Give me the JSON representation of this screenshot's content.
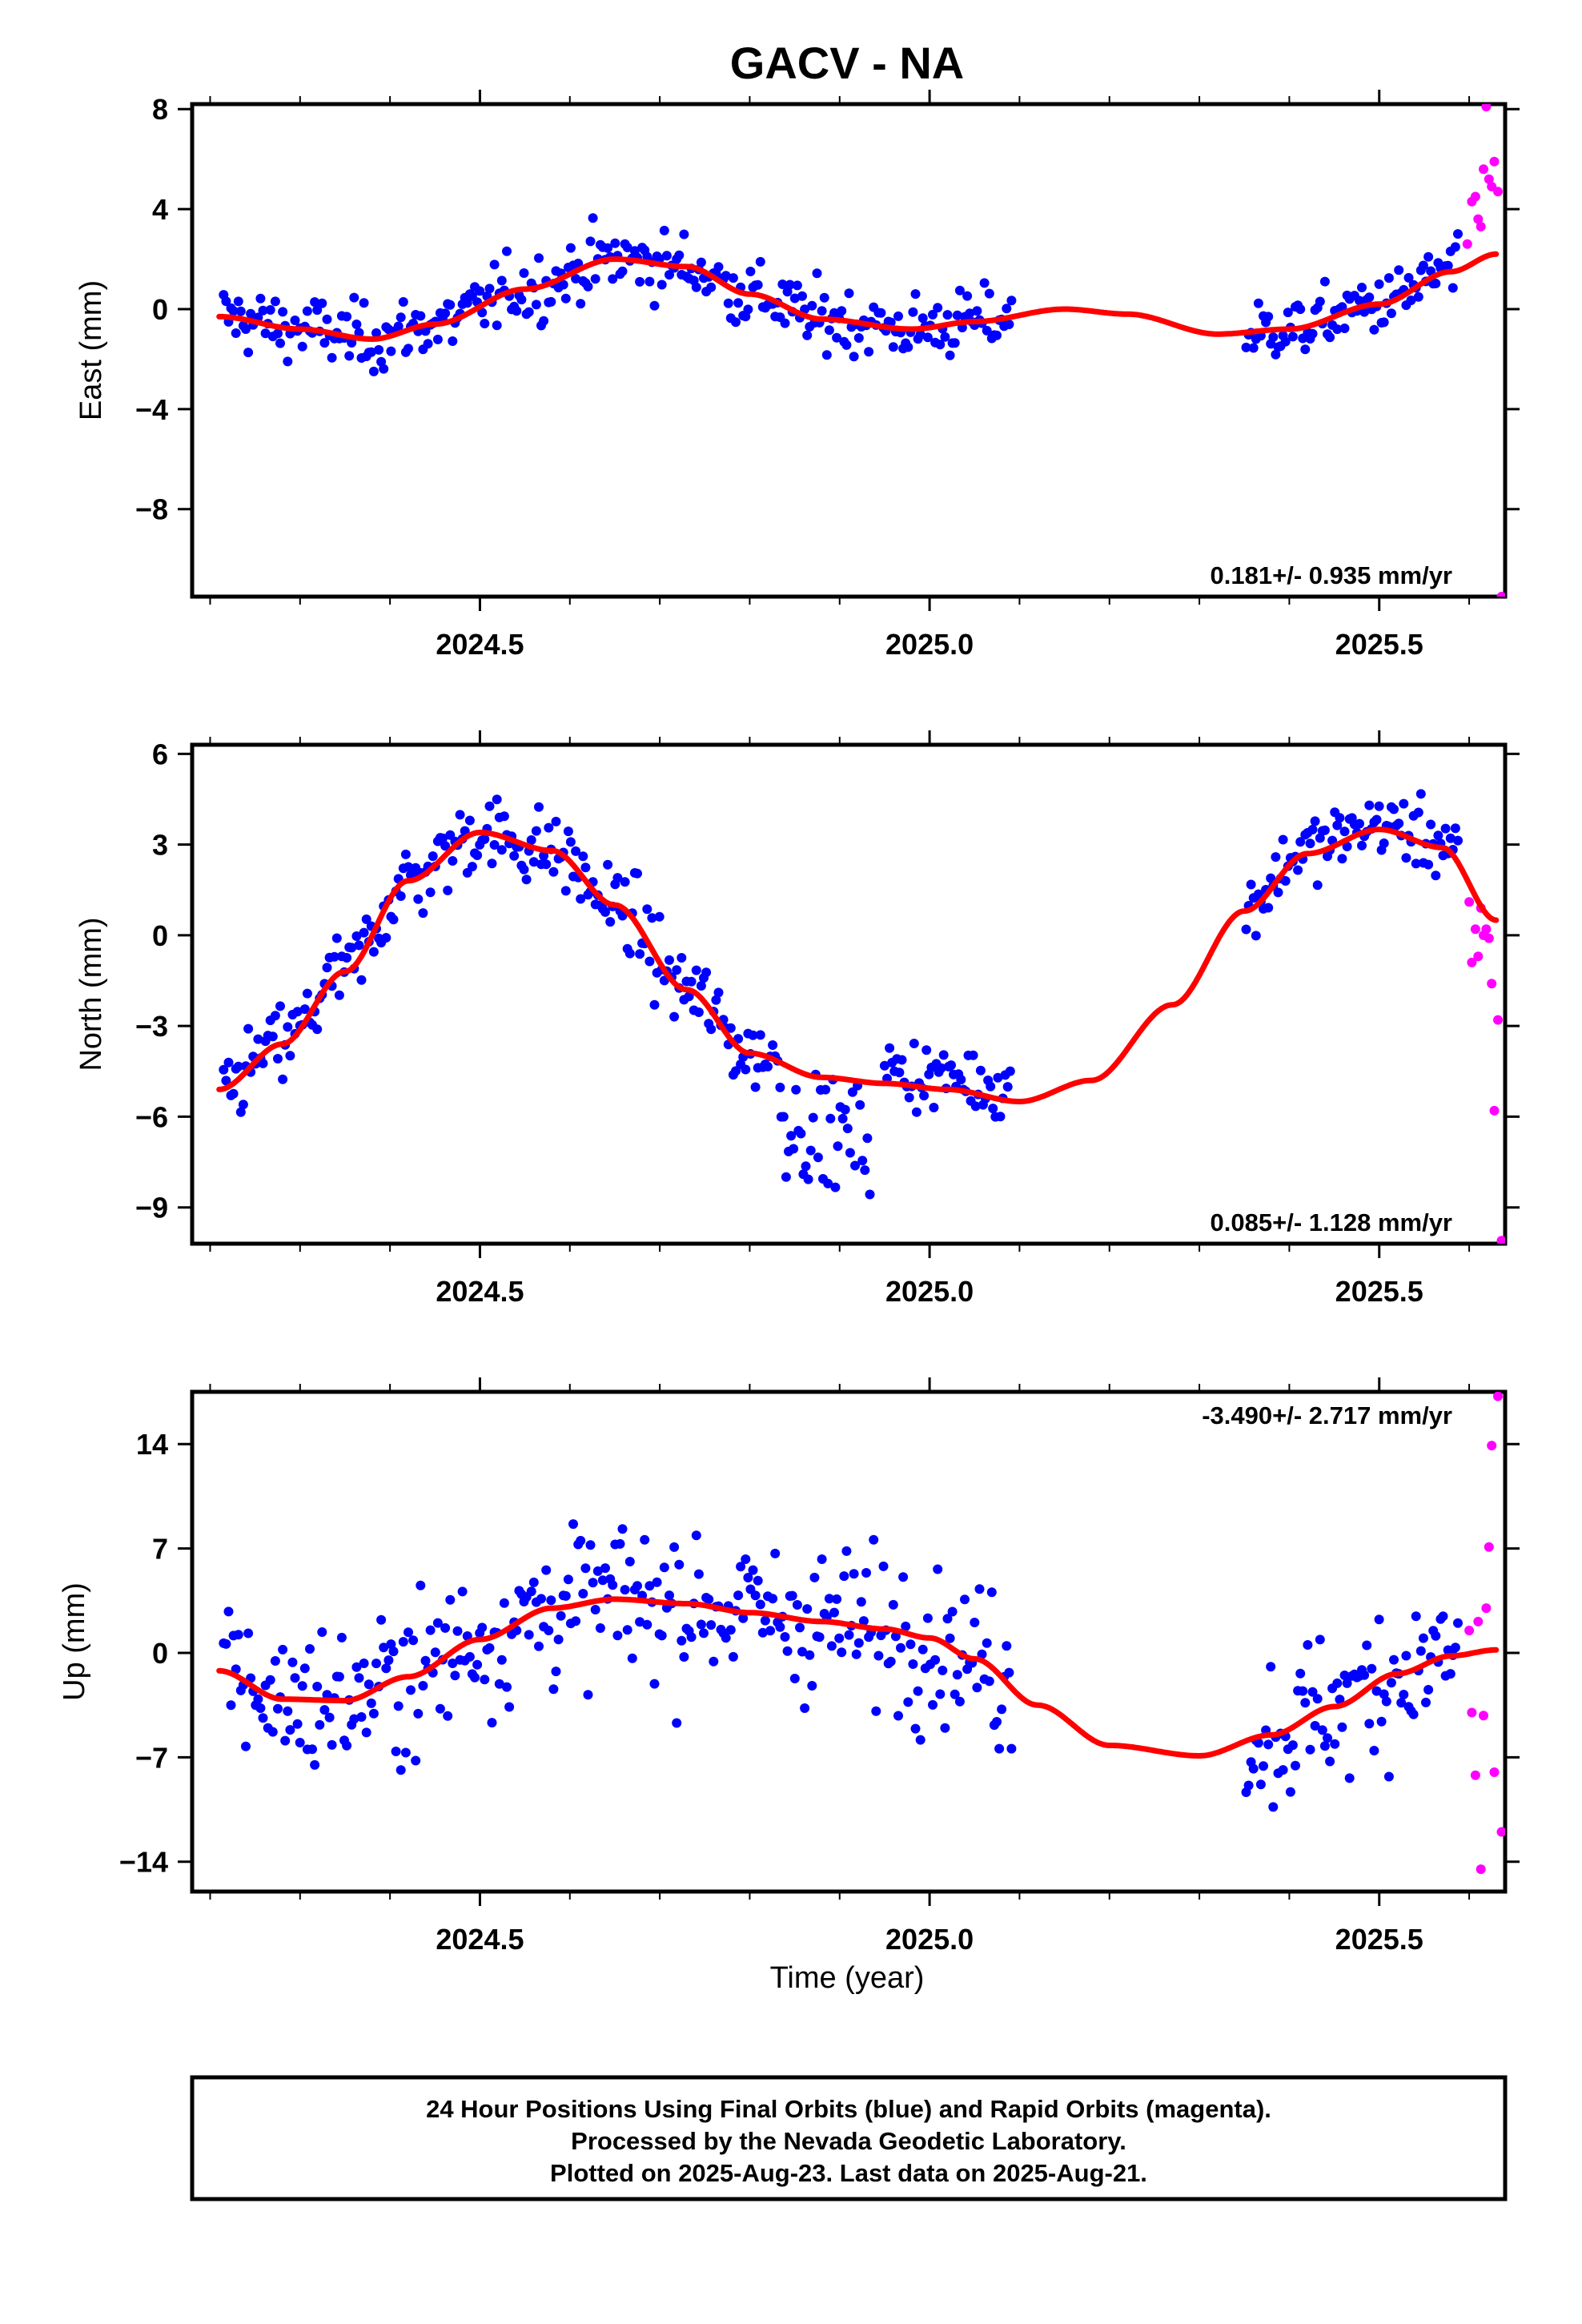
{
  "title": "GACV - NA",
  "xlabel": "Time (year)",
  "caption": [
    "24 Hour Positions Using Final Orbits (blue) and Rapid Orbits (magenta).",
    "Processed by the Nevada Geodetic Laboratory.",
    "Plotted on 2025-Aug-23. Last data on 2025-Aug-21."
  ],
  "colors": {
    "final_orbits": "#0000ff",
    "rapid_orbits": "#ff00ff",
    "model": "#ff0000",
    "frame": "#000000"
  },
  "chart_data": [
    {
      "type": "scatter",
      "ylabel": "East (mm)",
      "rate_label": "0.181+/- 0.935 mm/yr",
      "rate_position": "bottom-right",
      "xlim": [
        2024.18,
        2025.64
      ],
      "ylim": [
        -11.5,
        8.2
      ],
      "xticks": [
        2024.5,
        2025.0,
        2025.5
      ],
      "xtick_labels": [
        "2024.5",
        "2025.0",
        "2025.5"
      ],
      "yticks": [
        8,
        4,
        0,
        -4,
        -8
      ],
      "ytick_labels": [
        "8",
        "4",
        "0",
        "−4",
        "−8"
      ],
      "model_knots": [
        [
          2024.21,
          -0.3
        ],
        [
          2024.3,
          -0.8
        ],
        [
          2024.38,
          -1.2
        ],
        [
          2024.45,
          -0.6
        ],
        [
          2024.55,
          0.8
        ],
        [
          2024.65,
          2.0
        ],
        [
          2024.73,
          1.7
        ],
        [
          2024.8,
          0.6
        ],
        [
          2024.88,
          -0.4
        ],
        [
          2024.98,
          -0.8
        ],
        [
          2025.05,
          -0.5
        ],
        [
          2025.15,
          0.0
        ],
        [
          2025.22,
          -0.2
        ],
        [
          2025.32,
          -1.0
        ],
        [
          2025.4,
          -0.8
        ],
        [
          2025.5,
          0.2
        ],
        [
          2025.58,
          1.5
        ],
        [
          2025.63,
          2.2
        ]
      ],
      "series": [
        {
          "name": "Final Orbits (blue)",
          "color": "#0000ff",
          "segments": [
            {
              "x0": 2024.215,
              "x1": 2025.092,
              "offset": 0.0,
              "spread": 1.2
            },
            {
              "x0": 2025.352,
              "x1": 2025.59,
              "offset": 0.0,
              "spread": 1.1
            }
          ]
        },
        {
          "name": "Rapid Orbits (magenta)",
          "color": "#ff00ff",
          "points": [
            [
              2025.598,
              2.6
            ],
            [
              2025.603,
              4.3
            ],
            [
              2025.607,
              4.5
            ],
            [
              2025.61,
              3.6
            ],
            [
              2025.613,
              3.3
            ],
            [
              2025.616,
              5.6
            ],
            [
              2025.619,
              8.1
            ],
            [
              2025.622,
              5.2
            ],
            [
              2025.625,
              4.9
            ],
            [
              2025.628,
              5.9
            ],
            [
              2025.632,
              4.7
            ],
            [
              2025.636,
              -11.5
            ]
          ]
        }
      ]
    },
    {
      "type": "scatter",
      "ylabel": "North (mm)",
      "rate_label": "0.085+/- 1.128 mm/yr",
      "rate_position": "bottom-right",
      "xlim": [
        2024.18,
        2025.64
      ],
      "ylim": [
        -10.2,
        6.3
      ],
      "xticks": [
        2024.5,
        2025.0,
        2025.5
      ],
      "xtick_labels": [
        "2024.5",
        "2025.0",
        "2025.5"
      ],
      "yticks": [
        6,
        3,
        0,
        -3,
        -6,
        -9
      ],
      "ytick_labels": [
        "6",
        "3",
        "0",
        "−3",
        "−6",
        "−9"
      ],
      "model_knots": [
        [
          2024.21,
          -5.1
        ],
        [
          2024.28,
          -3.6
        ],
        [
          2024.35,
          -1.2
        ],
        [
          2024.42,
          1.8
        ],
        [
          2024.5,
          3.4
        ],
        [
          2024.58,
          2.8
        ],
        [
          2024.65,
          1.0
        ],
        [
          2024.73,
          -1.8
        ],
        [
          2024.8,
          -3.9
        ],
        [
          2024.88,
          -4.7
        ],
        [
          2024.95,
          -4.9
        ],
        [
          2025.02,
          -5.1
        ],
        [
          2025.1,
          -5.5
        ],
        [
          2025.18,
          -4.8
        ],
        [
          2025.27,
          -2.3
        ],
        [
          2025.35,
          0.8
        ],
        [
          2025.42,
          2.7
        ],
        [
          2025.5,
          3.5
        ],
        [
          2025.57,
          2.9
        ],
        [
          2025.63,
          0.5
        ]
      ],
      "series": [
        {
          "name": "Final Orbits (blue)",
          "color": "#0000ff",
          "segments": [
            {
              "x0": 2024.215,
              "x1": 2024.835,
              "offset": 0.0,
              "spread": 1.2
            },
            {
              "x0": 2024.835,
              "x1": 2024.935,
              "offset": -1.8,
              "spread": 1.6
            },
            {
              "x0": 2024.95,
              "x1": 2025.092,
              "offset": 0.4,
              "spread": 1.0
            },
            {
              "x0": 2025.352,
              "x1": 2025.59,
              "offset": 0.2,
              "spread": 1.0
            }
          ]
        },
        {
          "name": "Rapid Orbits (magenta)",
          "color": "#ff00ff",
          "points": [
            [
              2025.6,
              1.1
            ],
            [
              2025.603,
              -0.9
            ],
            [
              2025.607,
              0.2
            ],
            [
              2025.61,
              -0.7
            ],
            [
              2025.613,
              0.9
            ],
            [
              2025.616,
              0.0
            ],
            [
              2025.619,
              0.2
            ],
            [
              2025.622,
              -0.1
            ],
            [
              2025.625,
              -1.6
            ],
            [
              2025.628,
              -5.8
            ],
            [
              2025.632,
              -2.8
            ],
            [
              2025.636,
              -10.1
            ]
          ]
        }
      ]
    },
    {
      "type": "scatter",
      "ylabel": "Up (mm)",
      "rate_label": "-3.490+/- 2.717 mm/yr",
      "rate_position": "top-right",
      "xlim": [
        2024.18,
        2025.64
      ],
      "ylim": [
        -16.0,
        17.5
      ],
      "xticks": [
        2024.5,
        2025.0,
        2025.5
      ],
      "xtick_labels": [
        "2024.5",
        "2025.0",
        "2025.5"
      ],
      "yticks": [
        14,
        7,
        0,
        -7,
        -14
      ],
      "ytick_labels": [
        "14",
        "7",
        "0",
        "−7",
        "−14"
      ],
      "model_knots": [
        [
          2024.21,
          -1.2
        ],
        [
          2024.28,
          -3.1
        ],
        [
          2024.35,
          -3.2
        ],
        [
          2024.42,
          -1.6
        ],
        [
          2024.5,
          0.9
        ],
        [
          2024.58,
          3.0
        ],
        [
          2024.65,
          3.6
        ],
        [
          2024.73,
          3.3
        ],
        [
          2024.8,
          2.7
        ],
        [
          2024.88,
          2.1
        ],
        [
          2024.95,
          1.6
        ],
        [
          2025.0,
          1.0
        ],
        [
          2025.05,
          -0.4
        ],
        [
          2025.12,
          -3.5
        ],
        [
          2025.2,
          -6.2
        ],
        [
          2025.3,
          -6.9
        ],
        [
          2025.38,
          -5.5
        ],
        [
          2025.45,
          -3.6
        ],
        [
          2025.52,
          -1.4
        ],
        [
          2025.58,
          -0.2
        ],
        [
          2025.63,
          0.2
        ]
      ],
      "series": [
        {
          "name": "Final Orbits (blue)",
          "color": "#0000ff",
          "segments": [
            {
              "x0": 2024.215,
              "x1": 2025.092,
              "offset": 0.0,
              "spread": 4.6
            },
            {
              "x0": 2025.352,
              "x1": 2025.59,
              "offset": 0.0,
              "spread": 4.6
            }
          ]
        },
        {
          "name": "Rapid Orbits (magenta)",
          "color": "#ff00ff",
          "points": [
            [
              2025.6,
              1.5
            ],
            [
              2025.603,
              -4.0
            ],
            [
              2025.607,
              -8.2
            ],
            [
              2025.61,
              2.1
            ],
            [
              2025.613,
              -14.5
            ],
            [
              2025.616,
              -4.2
            ],
            [
              2025.619,
              3.0
            ],
            [
              2025.622,
              7.1
            ],
            [
              2025.625,
              13.9
            ],
            [
              2025.628,
              -8.0
            ],
            [
              2025.632,
              17.2
            ],
            [
              2025.636,
              -12.0
            ]
          ]
        }
      ]
    }
  ]
}
